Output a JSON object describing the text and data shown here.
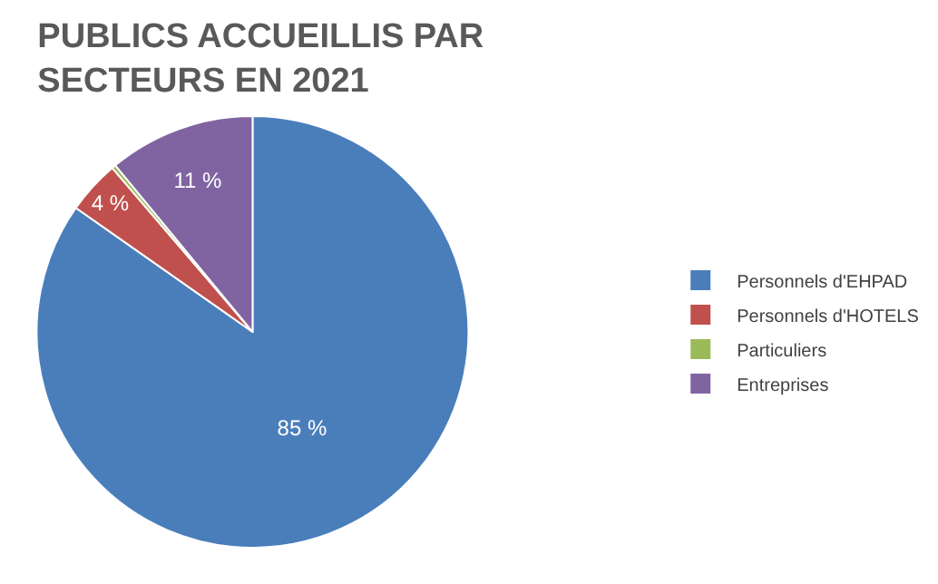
{
  "chart_data": {
    "type": "pie",
    "title": "PUBLICS ACCUEILLIS PAR\nSECTEURS EN 2021",
    "categories": [
      "Personnels d'EHPAD",
      "Personnels d'HOTELS",
      "Particuliers",
      "Entreprises"
    ],
    "values": [
      85,
      4,
      0.3,
      11
    ],
    "value_labels": [
      "85 %",
      "4 %",
      null,
      "11 %"
    ],
    "colors": [
      "#4a7ebb",
      "#c0504d",
      "#9bbb59",
      "#8064a2"
    ],
    "legend": "right"
  }
}
